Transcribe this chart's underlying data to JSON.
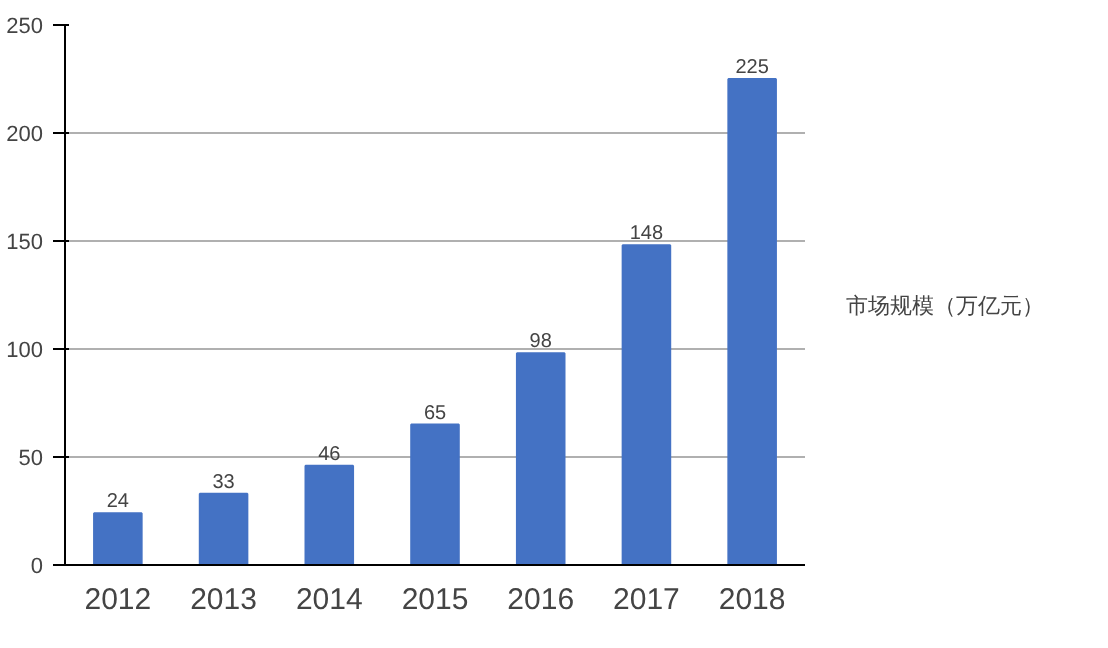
{
  "chart_data": {
    "type": "bar",
    "categories": [
      "2012",
      "2013",
      "2014",
      "2015",
      "2016",
      "2017",
      "2018"
    ],
    "series": [
      {
        "name": "市场规模（万亿元）",
        "color": "#4472c4",
        "values": [
          24,
          33,
          46,
          65,
          98,
          148,
          225
        ]
      }
    ],
    "ylim": [
      0,
      250
    ],
    "yticks": [
      0,
      50,
      100,
      150,
      200,
      250
    ],
    "grid": "y",
    "legend": "right",
    "data_labels": true
  }
}
